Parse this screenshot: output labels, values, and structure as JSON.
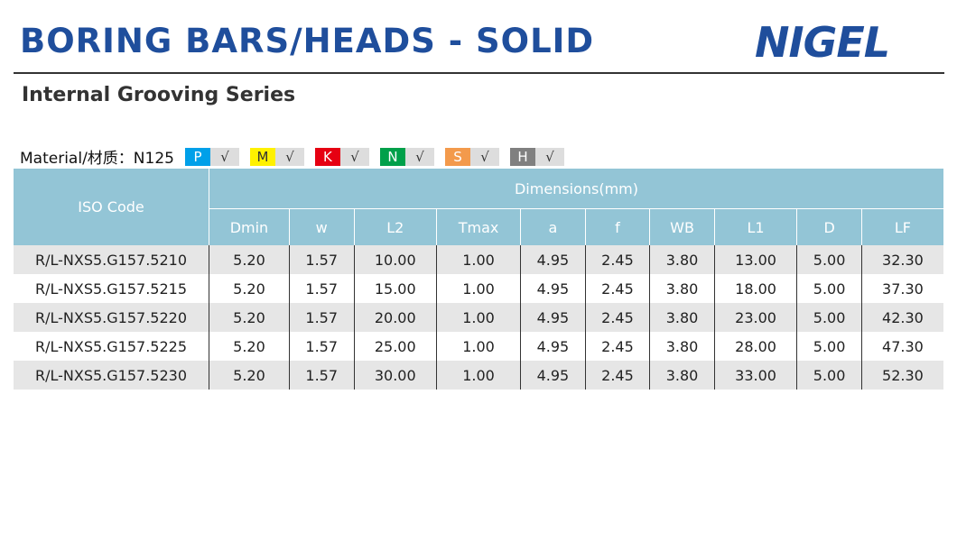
{
  "header": {
    "title": "BORING BARS/HEADS - SOLID",
    "logo": "NIGEL",
    "subtitle": "Internal Grooving Series"
  },
  "material": {
    "label": "Material/材质：N125",
    "grades": [
      {
        "code": "P",
        "color": "#00a0e9",
        "check": "√"
      },
      {
        "code": "M",
        "color": "#fff100",
        "check": "√"
      },
      {
        "code": "K",
        "color": "#e60012",
        "check": "√"
      },
      {
        "code": "N",
        "color": "#00a04a",
        "check": "√"
      },
      {
        "code": "S",
        "color": "#f39a4c",
        "check": "√"
      },
      {
        "code": "H",
        "color": "#808080",
        "check": "√"
      }
    ]
  },
  "table": {
    "iso_header": "ISO Code",
    "group_header": "Dimensions(mm)",
    "columns": [
      "Dmin",
      "w",
      "L2",
      "Tmax",
      "a",
      "f",
      "WB",
      "L1",
      "D",
      "LF"
    ],
    "rows": [
      [
        "R/L-NXS5.G157.5210",
        "5.20",
        "1.57",
        "10.00",
        "1.00",
        "4.95",
        "2.45",
        "3.80",
        "13.00",
        "5.00",
        "32.30"
      ],
      [
        "R/L-NXS5.G157.5215",
        "5.20",
        "1.57",
        "15.00",
        "1.00",
        "4.95",
        "2.45",
        "3.80",
        "18.00",
        "5.00",
        "37.30"
      ],
      [
        "R/L-NXS5.G157.5220",
        "5.20",
        "1.57",
        "20.00",
        "1.00",
        "4.95",
        "2.45",
        "3.80",
        "23.00",
        "5.00",
        "42.30"
      ],
      [
        "R/L-NXS5.G157.5225",
        "5.20",
        "1.57",
        "25.00",
        "1.00",
        "4.95",
        "2.45",
        "3.80",
        "28.00",
        "5.00",
        "47.30"
      ],
      [
        "R/L-NXS5.G157.5230",
        "5.20",
        "1.57",
        "30.00",
        "1.00",
        "4.95",
        "2.45",
        "3.80",
        "33.00",
        "5.00",
        "52.30"
      ]
    ]
  }
}
